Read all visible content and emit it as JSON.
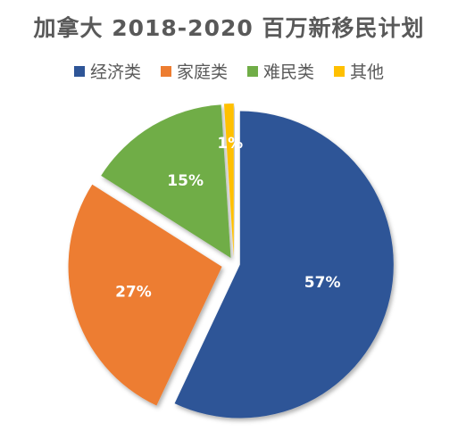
{
  "chart_data": {
    "type": "pie",
    "title": "加拿大 2018-2020 百万新移民计划",
    "categories": [
      "经济类",
      "家庭类",
      "难民类",
      "其他"
    ],
    "values": [
      57,
      27,
      15,
      1
    ],
    "data_labels": [
      "57%",
      "27%",
      "15%",
      "1%"
    ],
    "colors": [
      "#2E5597",
      "#ED7D31",
      "#70AD47",
      "#FFC000"
    ],
    "legend_position": "top",
    "exploded": true
  }
}
